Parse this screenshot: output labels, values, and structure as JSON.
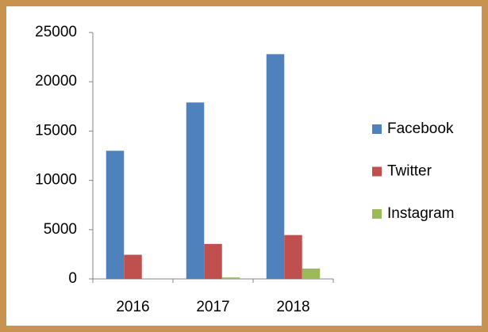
{
  "chart_data": {
    "type": "bar",
    "categories": [
      "2016",
      "2017",
      "2018"
    ],
    "series": [
      {
        "name": "Facebook",
        "color": "#4f81bd",
        "values": [
          13000,
          17900,
          22800
        ]
      },
      {
        "name": "Twitter",
        "color": "#c0504d",
        "values": [
          2450,
          3550,
          4450
        ]
      },
      {
        "name": "Instagram",
        "color": "#9bbb59",
        "values": [
          0,
          150,
          1050
        ]
      }
    ],
    "ylim": [
      0,
      25000
    ],
    "yticks": [
      0,
      5000,
      10000,
      15000,
      20000,
      25000
    ],
    "grid": false,
    "legend": "right"
  }
}
